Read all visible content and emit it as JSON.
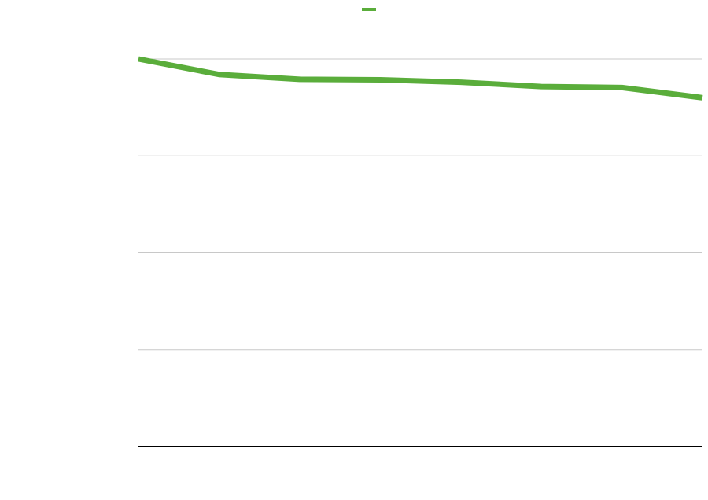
{
  "chart_data": {
    "type": "line",
    "title": "",
    "xlabel": "",
    "ylabel": "",
    "x": [
      0,
      1,
      2,
      3,
      4,
      5,
      6,
      7
    ],
    "series": [
      {
        "name": "",
        "color": "#5aad3b",
        "values": [
          4.0,
          3.84,
          3.79,
          3.785,
          3.76,
          3.715,
          3.705,
          3.6
        ]
      }
    ],
    "ylim": [
      0,
      4
    ],
    "xlim": [
      0,
      7
    ],
    "yticks": [
      0,
      1,
      2,
      3,
      4
    ],
    "grid": true,
    "legend": "top-center"
  }
}
